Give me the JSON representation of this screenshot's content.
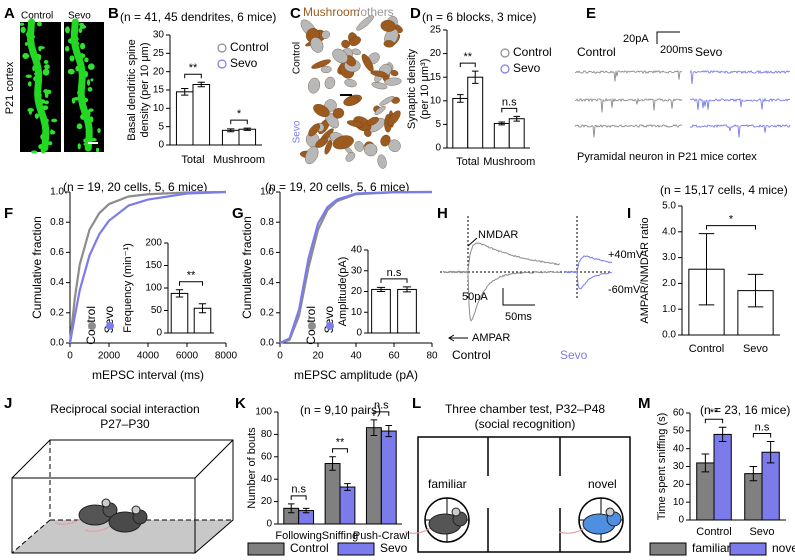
{
  "panels": {
    "A": {
      "letter": "A",
      "labels": [
        "Control",
        "Sevo"
      ],
      "region": "P21 cortex"
    },
    "C": {
      "letter": "C",
      "title": [
        "Mushroom",
        "/others"
      ],
      "rows": [
        "Control",
        "Sevo"
      ]
    },
    "E": {
      "letter": "E",
      "scale_y": "20pA",
      "scale_x": "200ms",
      "labels": [
        "Control",
        "Sevo"
      ],
      "caption": "Pyramidal neuron in P21 mice cortex"
    },
    "H": {
      "letter": "H",
      "labels": [
        "NMDAR",
        "+40mV",
        "-60mV",
        "AMPAR"
      ],
      "scale_y": "50pA",
      "scale_x": "50ms",
      "groups": [
        "Control",
        "Sevo"
      ]
    },
    "J": {
      "letter": "J",
      "title": [
        "Reciprocal social interaction",
        "P27–P30"
      ]
    },
    "L": {
      "letter": "L",
      "title": [
        "Three chamber test, P32–P48",
        "(social recognition)"
      ],
      "chambers": [
        "familiar",
        "novel"
      ]
    }
  },
  "chart_data": [
    {
      "panel": "B",
      "type": "bar",
      "subtitle": "(n = 41, 45 dendrites, 6 mice)",
      "y_label": [
        "Basal dendritic spine",
        "density (per 10 μm)"
      ],
      "categories": [
        "Total",
        "Mushroom"
      ],
      "series": [
        {
          "name": "Control",
          "color": "#8c8c8c",
          "values": [
            14.5,
            4.0
          ],
          "errors": [
            0.9,
            0.4
          ]
        },
        {
          "name": "Sevo",
          "color": "#7b7bec",
          "values": [
            16.5,
            4.3
          ],
          "errors": [
            0.6,
            0.3
          ]
        }
      ],
      "bar_fill": "#ffffff",
      "ylim": [
        0,
        30
      ],
      "yticks": [
        0,
        5,
        10,
        15,
        20,
        25,
        30
      ],
      "significance": [
        "**",
        "*"
      ],
      "legend": "upper right"
    },
    {
      "panel": "D",
      "type": "bar",
      "subtitle": "(n = 6 blocks, 3 mice)",
      "y_label": [
        "Synaptic density",
        "(per 10 μm³)"
      ],
      "categories": [
        "Total",
        "Mushroom"
      ],
      "series": [
        {
          "name": "Control",
          "color": "#8c8c8c",
          "values": [
            10.5,
            5.2
          ],
          "errors": [
            0.8,
            0.3
          ]
        },
        {
          "name": "Sevo",
          "color": "#7b7bec",
          "values": [
            15.0,
            6.2
          ],
          "errors": [
            1.3,
            0.5
          ]
        }
      ],
      "bar_fill": "#ffffff",
      "ylim": [
        0,
        25
      ],
      "yticks": [
        0,
        5,
        10,
        15,
        20,
        25
      ],
      "significance": [
        "**",
        "n.s"
      ],
      "legend": "upper right"
    },
    {
      "panel": "F",
      "type": "line",
      "subtitle": "(n = 19, 20 cells, 5, 6 mice)",
      "x_label": "mEPSC interval (ms)",
      "y_label": "Cumulative fraction",
      "x": [
        0,
        250,
        500,
        1000,
        1500,
        2000,
        3000,
        4000,
        6000,
        8000
      ],
      "series": [
        {
          "name": "Control",
          "color": "#8c8c8c",
          "values": [
            0,
            0.3,
            0.52,
            0.75,
            0.86,
            0.92,
            0.97,
            0.985,
            0.997,
            1
          ]
        },
        {
          "name": "Sevo",
          "color": "#7b7bec",
          "values": [
            0,
            0.18,
            0.35,
            0.58,
            0.72,
            0.81,
            0.91,
            0.95,
            0.99,
            1
          ]
        }
      ],
      "xlim": [
        0,
        8000
      ],
      "xticks": [
        0,
        2000,
        4000,
        6000,
        8000
      ],
      "ylim": [
        0,
        1
      ],
      "yticks": [
        {
          "value": 0,
          "label": "0.0"
        },
        0.2,
        0.4,
        0.6,
        0.8,
        {
          "value": 1,
          "label": "1.0"
        }
      ],
      "legend": "lower left",
      "inset": {
        "type": "bar",
        "y_label": "Frequency (min⁻¹)",
        "values": [
          88,
          55
        ],
        "errors": [
          8,
          10
        ],
        "bar_fill": "#ffffff",
        "ylim": [
          0,
          200
        ],
        "yticks": [
          0,
          50,
          100,
          150,
          200
        ],
        "significance": "**"
      }
    },
    {
      "panel": "G",
      "type": "line",
      "subtitle": "(n = 19, 20 cells, 5, 6 mice)",
      "x_label": "mEPSC amplitude (pA)",
      "y_label": "Cumulative fraction",
      "x": [
        0,
        5,
        10,
        15,
        20,
        25,
        30,
        40,
        60,
        80
      ],
      "series": [
        {
          "name": "Control",
          "color": "#8c8c8c",
          "values": [
            0,
            0.02,
            0.18,
            0.5,
            0.75,
            0.88,
            0.94,
            0.985,
            0.998,
            1
          ]
        },
        {
          "name": "Sevo",
          "color": "#7b7bec",
          "values": [
            0,
            0.03,
            0.22,
            0.56,
            0.79,
            0.9,
            0.95,
            0.99,
            0.999,
            1
          ]
        }
      ],
      "xlim": [
        0,
        80
      ],
      "xticks": [
        0,
        20,
        40,
        60,
        80
      ],
      "ylim": [
        0,
        1
      ],
      "yticks": [
        {
          "value": 0,
          "label": "0.0"
        },
        0.2,
        0.4,
        0.6,
        0.8,
        {
          "value": 1,
          "label": "1.0"
        }
      ],
      "legend": "lower left",
      "inset": {
        "type": "bar",
        "y_label": "Amplitude(pA)",
        "values": [
          21,
          21
        ],
        "errors": [
          1,
          1.2
        ],
        "bar_fill": "#ffffff",
        "ylim": [
          0,
          40
        ],
        "yticks": [
          0,
          10,
          20,
          30,
          40
        ],
        "significance": "n.s"
      }
    },
    {
      "panel": "I",
      "type": "bar",
      "subtitle": "(n = 15,17 cells, 4 mice)",
      "y_label": "AMPAR/NMDAR ratio",
      "categories": [
        "Control",
        "Sevo"
      ],
      "values": [
        2.55,
        1.72
      ],
      "errors": [
        1.38,
        0.63
      ],
      "bar_fill": "#ffffff",
      "ylim": [
        0,
        5
      ],
      "yticks": [
        {
          "value": 0,
          "label": "0.0"
        },
        {
          "value": 1,
          "label": "1.0"
        },
        {
          "value": 2,
          "label": "2.0"
        },
        {
          "value": 3,
          "label": "3.0"
        },
        {
          "value": 4,
          "label": "4.0"
        },
        {
          "value": 5,
          "label": "5.0"
        }
      ],
      "significance": "*"
    },
    {
      "panel": "K",
      "type": "bar",
      "subtitle": "(n = 9,10 pairs)",
      "y_label": "Number of bouts",
      "categories": [
        "Following",
        "Sniffing",
        "Push-Crawl"
      ],
      "series": [
        {
          "name": "Control",
          "color": "#808080",
          "values": [
            14,
            54,
            86
          ],
          "errors": [
            4,
            6,
            7
          ]
        },
        {
          "name": "Sevo",
          "color": "#7b7bec",
          "values": [
            12,
            33,
            83
          ],
          "errors": [
            2,
            3,
            5
          ]
        }
      ],
      "ylim": [
        0,
        100
      ],
      "yticks": [
        0,
        20,
        40,
        60,
        80,
        100
      ],
      "significance": [
        "n.s",
        "**",
        "n.s"
      ],
      "legend": "bottom"
    },
    {
      "panel": "M",
      "type": "bar",
      "subtitle": "(n = 23, 16 mice)",
      "y_label": "Time spent sniffing (s)",
      "categories": [
        "Control",
        "Sevo"
      ],
      "series": [
        {
          "name": "familiar",
          "color": "#808080",
          "values": [
            32,
            26
          ],
          "errors": [
            5,
            4
          ]
        },
        {
          "name": "novel",
          "color": "#7b7bec",
          "values": [
            48,
            38
          ],
          "errors": [
            4,
            6
          ]
        }
      ],
      "ylim": [
        0,
        60
      ],
      "yticks": [
        0,
        10,
        20,
        30,
        40,
        50,
        60
      ],
      "significance": [
        "**",
        "n.s"
      ],
      "legend": "bottom"
    }
  ]
}
